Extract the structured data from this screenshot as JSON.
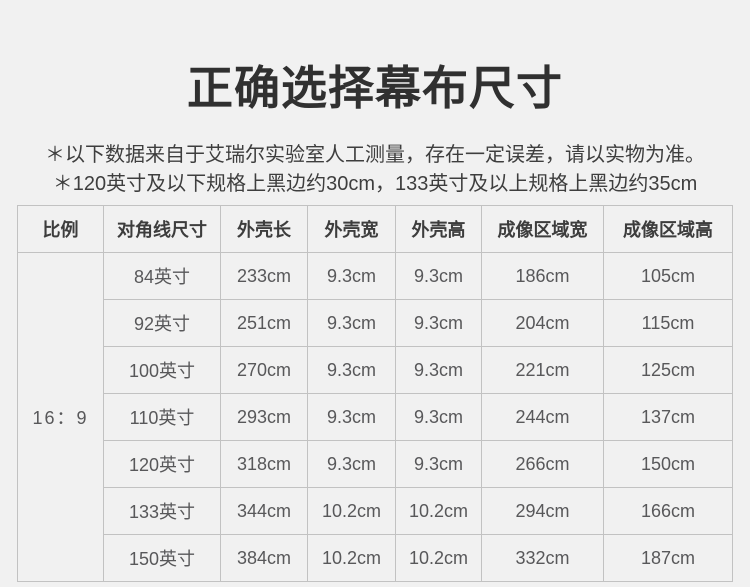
{
  "page": {
    "title": "正确选择幕布尺寸",
    "notes": [
      "＊以下数据来自于艾瑞尔实验室人工测量，存在一定误差，请以实物为准。",
      "＊120英寸及以下规格上黑边约30cm，133英寸及以上规格上黑边约35cm"
    ]
  },
  "table": {
    "headers": [
      "比例",
      "对角线尺寸",
      "外壳长",
      "外壳宽",
      "外壳高",
      "成像区域宽",
      "成像区域高"
    ],
    "ratio": "16：9",
    "rows": [
      [
        "84英寸",
        "233cm",
        "9.3cm",
        "9.3cm",
        "186cm",
        "105cm"
      ],
      [
        "92英寸",
        "251cm",
        "9.3cm",
        "9.3cm",
        "204cm",
        "115cm"
      ],
      [
        "100英寸",
        "270cm",
        "9.3cm",
        "9.3cm",
        "221cm",
        "125cm"
      ],
      [
        "110英寸",
        "293cm",
        "9.3cm",
        "9.3cm",
        "244cm",
        "137cm"
      ],
      [
        "120英寸",
        "318cm",
        "9.3cm",
        "9.3cm",
        "266cm",
        "150cm"
      ],
      [
        "133英寸",
        "344cm",
        "10.2cm",
        "10.2cm",
        "294cm",
        "166cm"
      ],
      [
        "150英寸",
        "384cm",
        "10.2cm",
        "10.2cm",
        "332cm",
        "187cm"
      ]
    ]
  },
  "colors": {
    "background": "#f1f1f1",
    "border": "#c2c2c2",
    "title_text": "#303030",
    "header_text": "#3d3d3d",
    "cell_text": "#58585a"
  }
}
